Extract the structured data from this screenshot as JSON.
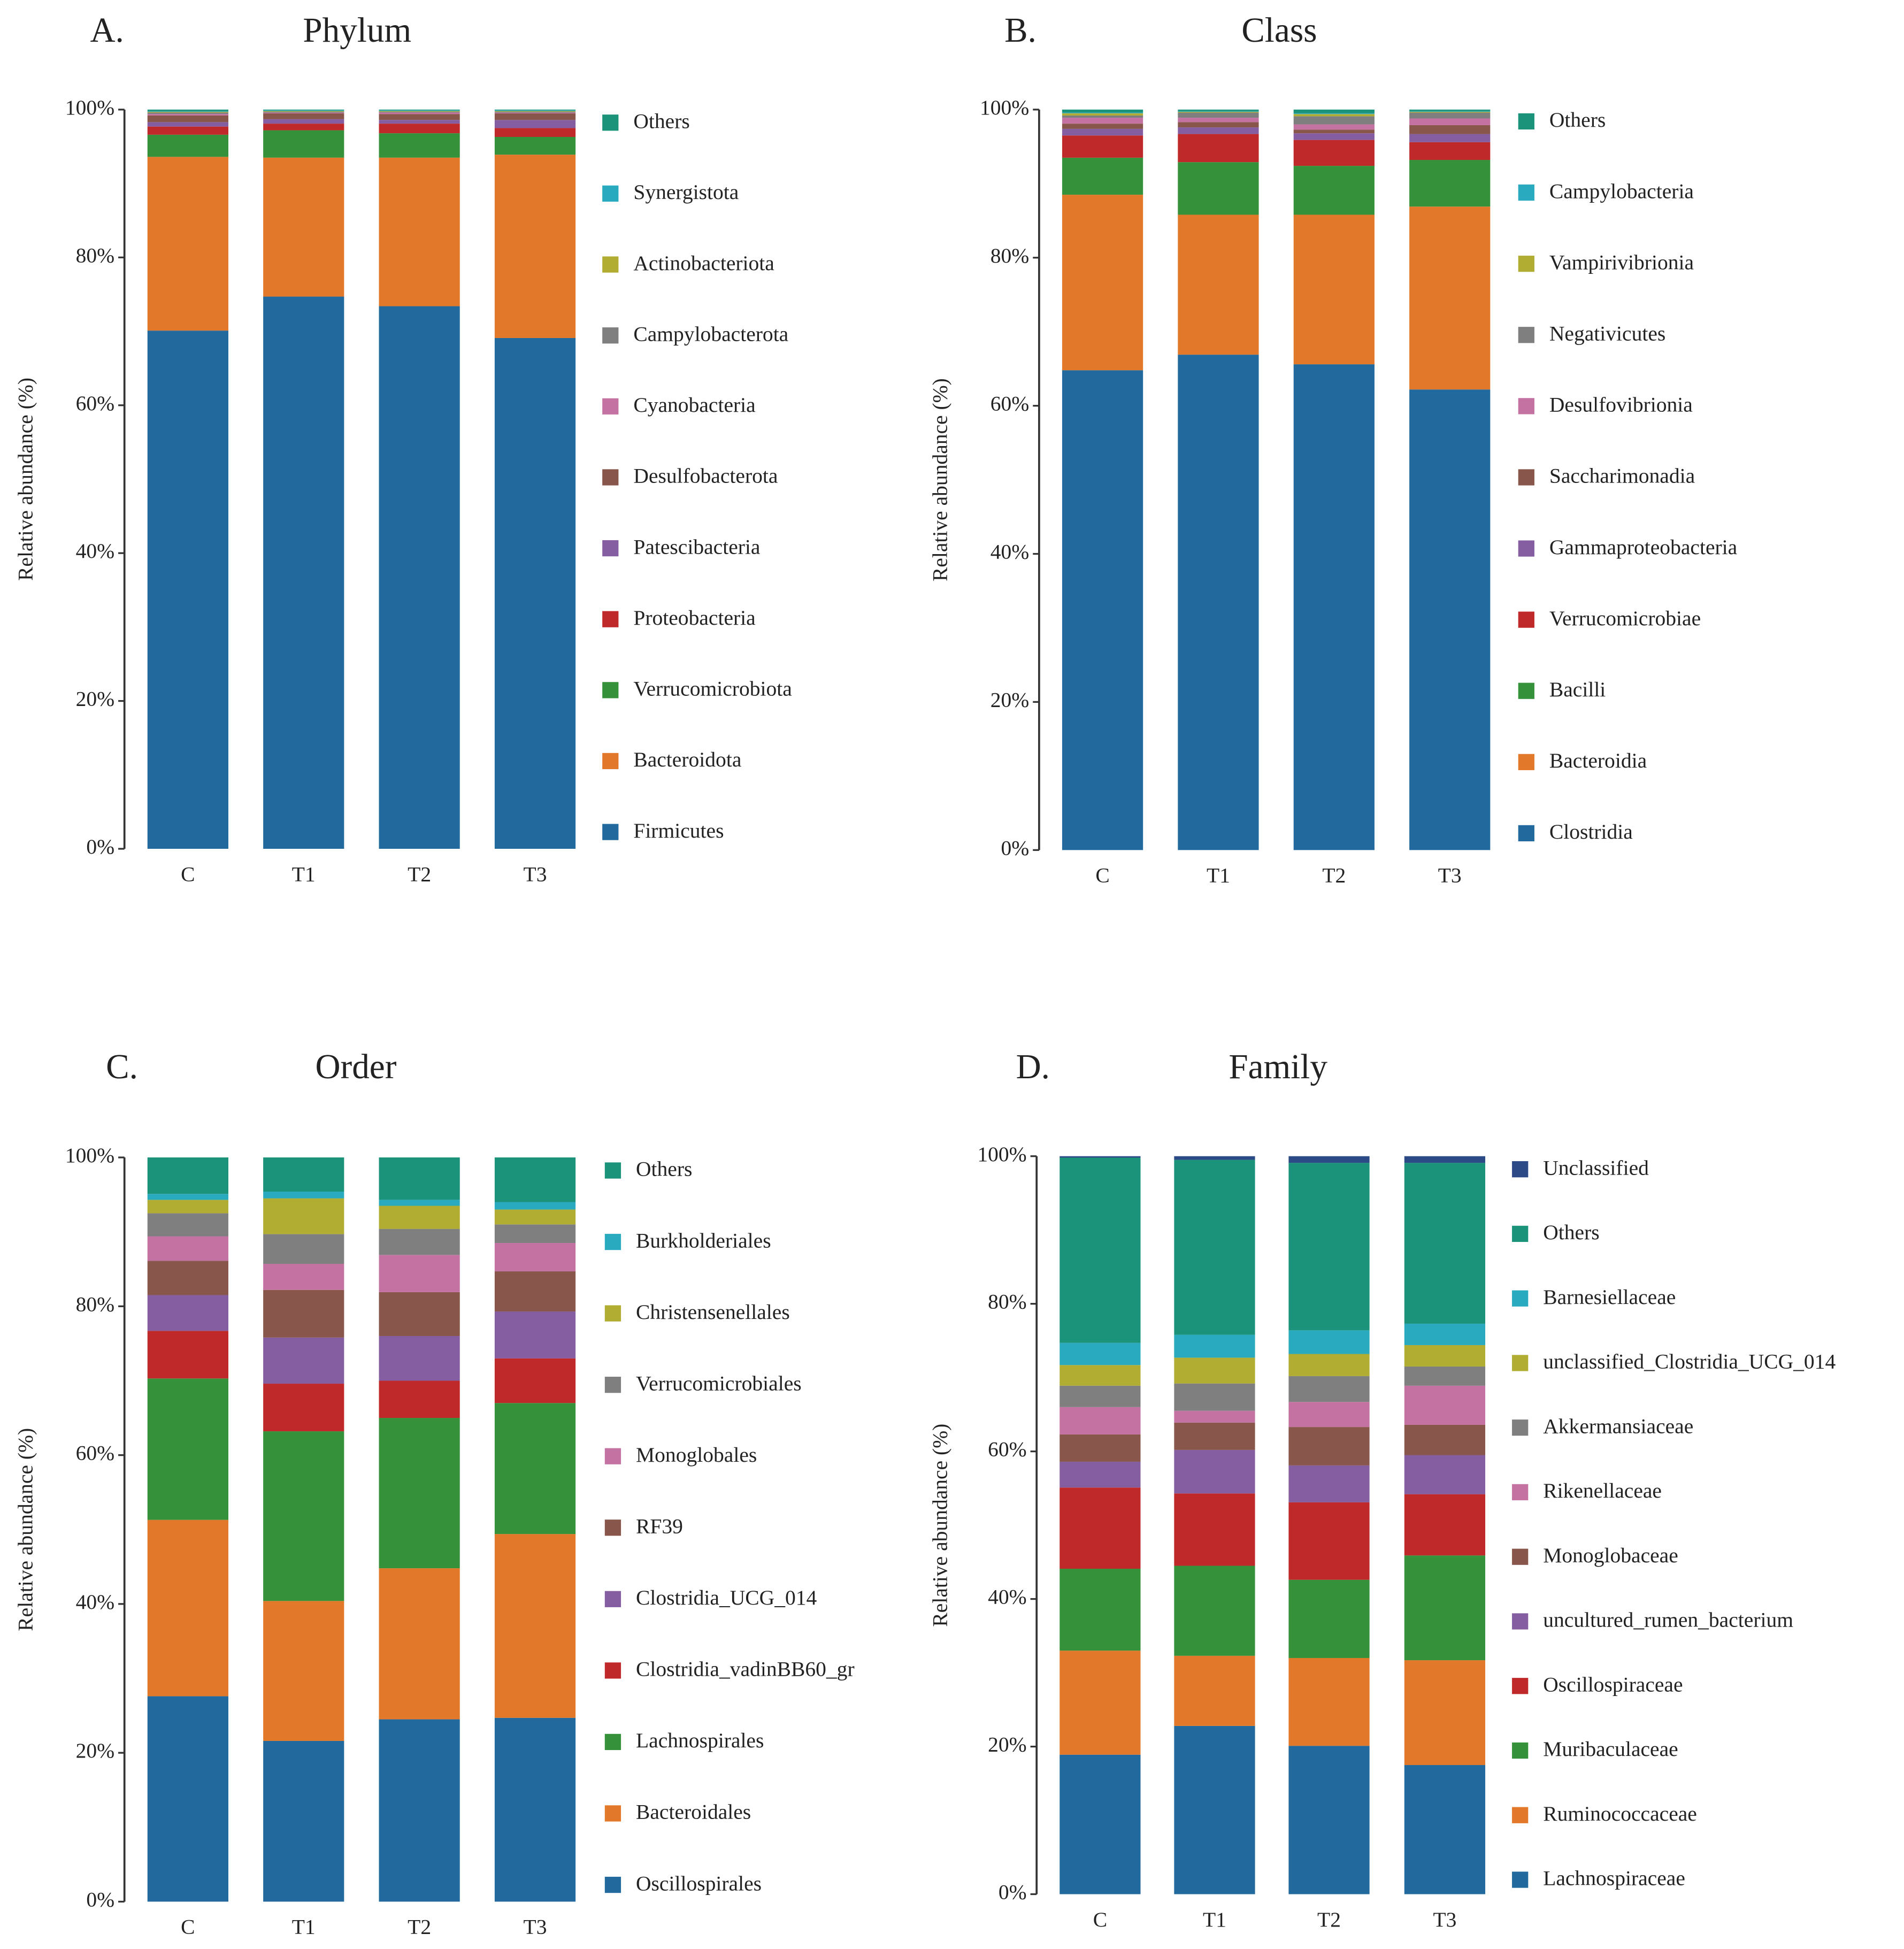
{
  "colors": {
    "blue": "#22699d",
    "orange": "#e27829",
    "green": "#35923a",
    "red": "#c0292a",
    "purple": "#845ea0",
    "brown": "#88564a",
    "pink": "#c472a2",
    "gray": "#7f7f7f",
    "olive": "#b0ad32",
    "cyan": "#29aabf",
    "teal": "#1b927a",
    "navy": "#2b4a86"
  },
  "chart_data": [
    {
      "type": "bar",
      "stacked": true,
      "panel_label": "A.",
      "title": "Phylum",
      "xlabel": "",
      "ylabel": "Relative abundance (%)",
      "ylim": [
        0,
        100
      ],
      "yticks": [
        "0%",
        "20%",
        "40%",
        "60%",
        "80%",
        "100%"
      ],
      "categories": [
        "C",
        "T1",
        "T2",
        "T3"
      ],
      "legend_position": "right",
      "series": [
        {
          "name": "Firmicutes",
          "color": "blue",
          "values": [
            70.1,
            74.7,
            73.4,
            69.1
          ]
        },
        {
          "name": "Bacteroidota",
          "color": "orange",
          "values": [
            23.5,
            18.8,
            20.1,
            24.8
          ]
        },
        {
          "name": "Verrucomicrobiota",
          "color": "green",
          "values": [
            3.0,
            3.7,
            3.3,
            2.4
          ]
        },
        {
          "name": "Proteobacteria",
          "color": "red",
          "values": [
            1.1,
            0.9,
            1.3,
            1.2
          ]
        },
        {
          "name": "Patescibacteria",
          "color": "purple",
          "values": [
            0.6,
            0.6,
            0.5,
            1.1
          ]
        },
        {
          "name": "Desulfobacterota",
          "color": "brown",
          "values": [
            0.9,
            0.8,
            0.8,
            0.9
          ]
        },
        {
          "name": "Cyanobacteria",
          "color": "pink",
          "values": [
            0.2,
            0.1,
            0.2,
            0.1
          ]
        },
        {
          "name": "Campylobacterota",
          "color": "gray",
          "values": [
            0.2,
            0.1,
            0.1,
            0.1
          ]
        },
        {
          "name": "Actinobacteriota",
          "color": "olive",
          "values": [
            0.1,
            0.1,
            0.1,
            0.1
          ]
        },
        {
          "name": "Synergistota",
          "color": "cyan",
          "values": [
            0.1,
            0.1,
            0.1,
            0.1
          ]
        },
        {
          "name": "Others",
          "color": "teal",
          "values": [
            0.2,
            0.1,
            0.1,
            0.1
          ]
        }
      ]
    },
    {
      "type": "bar",
      "stacked": true,
      "panel_label": "B.",
      "title": "Class",
      "xlabel": "",
      "ylabel": "Relative abundance (%)",
      "ylim": [
        0,
        100
      ],
      "yticks": [
        "0%",
        "20%",
        "40%",
        "60%",
        "80%",
        "100%"
      ],
      "categories": [
        "C",
        "T1",
        "T2",
        "T3"
      ],
      "legend_position": "right",
      "series": [
        {
          "name": "Clostridia",
          "color": "blue",
          "values": [
            64.8,
            66.9,
            65.6,
            62.2
          ]
        },
        {
          "name": "Bacteroidia",
          "color": "orange",
          "values": [
            23.7,
            18.9,
            20.2,
            24.7
          ]
        },
        {
          "name": "Bacilli",
          "color": "green",
          "values": [
            5.0,
            7.1,
            6.6,
            6.3
          ]
        },
        {
          "name": "Verrucomicrobiae",
          "color": "red",
          "values": [
            3.0,
            3.8,
            3.5,
            2.4
          ]
        },
        {
          "name": "Gammaproteobacteria",
          "color": "purple",
          "values": [
            0.9,
            0.9,
            0.9,
            1.1
          ]
        },
        {
          "name": "Saccharimonadia",
          "color": "brown",
          "values": [
            0.7,
            0.7,
            0.5,
            1.2
          ]
        },
        {
          "name": "Desulfovibrionia",
          "color": "pink",
          "values": [
            0.8,
            0.6,
            0.7,
            0.9
          ]
        },
        {
          "name": "Negativicutes",
          "color": "gray",
          "values": [
            0.3,
            0.7,
            1.1,
            0.8
          ]
        },
        {
          "name": "Vampirivibrionia",
          "color": "olive",
          "values": [
            0.3,
            0.1,
            0.3,
            0.1
          ]
        },
        {
          "name": "Campylobacteria",
          "color": "cyan",
          "values": [
            0.1,
            0.1,
            0.1,
            0.1
          ]
        },
        {
          "name": "Others",
          "color": "teal",
          "values": [
            0.4,
            0.2,
            0.5,
            0.2
          ]
        }
      ]
    },
    {
      "type": "bar",
      "stacked": true,
      "panel_label": "C.",
      "title": "Order",
      "xlabel": "",
      "ylabel": "Relative abundance (%)",
      "ylim": [
        0,
        100
      ],
      "yticks": [
        "0%",
        "20%",
        "40%",
        "60%",
        "80%",
        "100%"
      ],
      "categories": [
        "C",
        "T1",
        "T2",
        "T3"
      ],
      "legend_position": "right",
      "series": [
        {
          "name": "Oscillospirales",
          "color": "blue",
          "values": [
            27.6,
            21.6,
            24.5,
            24.7
          ]
        },
        {
          "name": "Bacteroidales",
          "color": "orange",
          "values": [
            23.7,
            18.8,
            20.3,
            24.7
          ]
        },
        {
          "name": "Lachnospirales",
          "color": "green",
          "values": [
            19.0,
            22.8,
            20.2,
            17.6
          ]
        },
        {
          "name": "Clostridia_vadinBB60_gr",
          "color": "red",
          "values": [
            6.4,
            6.4,
            5.0,
            6.0
          ]
        },
        {
          "name": "Clostridia_UCG_014",
          "color": "purple",
          "values": [
            4.8,
            6.2,
            6.0,
            6.3
          ]
        },
        {
          "name": "RF39",
          "color": "brown",
          "values": [
            4.6,
            6.4,
            5.9,
            5.4
          ]
        },
        {
          "name": "Monoglobales",
          "color": "pink",
          "values": [
            3.3,
            3.5,
            5.0,
            3.8
          ]
        },
        {
          "name": "Verrucomicrobiales",
          "color": "gray",
          "values": [
            3.1,
            4.0,
            3.5,
            2.5
          ]
        },
        {
          "name": "Christensenellales",
          "color": "olive",
          "values": [
            1.8,
            4.8,
            3.1,
            2.0
          ]
        },
        {
          "name": "Burkholderiales",
          "color": "cyan",
          "values": [
            0.8,
            0.9,
            0.8,
            1.0
          ]
        },
        {
          "name": "Others",
          "color": "teal",
          "values": [
            4.9,
            4.6,
            5.7,
            6.0
          ]
        }
      ]
    },
    {
      "type": "bar",
      "stacked": true,
      "panel_label": "D.",
      "title": "Family",
      "xlabel": "",
      "ylabel": "Relative abundance (%)",
      "ylim": [
        0,
        100
      ],
      "yticks": [
        "0%",
        "20%",
        "40%",
        "60%",
        "80%",
        "100%"
      ],
      "categories": [
        "C",
        "T1",
        "T2",
        "T3"
      ],
      "legend_position": "right",
      "series": [
        {
          "name": "Lachnospiraceae",
          "color": "blue",
          "values": [
            18.9,
            22.8,
            20.1,
            17.5
          ]
        },
        {
          "name": "Ruminococcaceae",
          "color": "orange",
          "values": [
            14.1,
            9.5,
            11.9,
            14.2
          ]
        },
        {
          "name": "Muribaculaceae",
          "color": "green",
          "values": [
            11.1,
            12.2,
            10.6,
            14.2
          ]
        },
        {
          "name": "Oscillospiraceae",
          "color": "red",
          "values": [
            11.0,
            9.8,
            10.5,
            8.3
          ]
        },
        {
          "name": "uncultured_rumen_bacterium",
          "color": "purple",
          "values": [
            3.5,
            5.9,
            5.0,
            5.3
          ]
        },
        {
          "name": "Monoglobaceae",
          "color": "brown",
          "values": [
            3.7,
            3.7,
            5.2,
            4.1
          ]
        },
        {
          "name": "Rikenellaceae",
          "color": "pink",
          "values": [
            3.7,
            1.6,
            3.4,
            5.3
          ]
        },
        {
          "name": "Akkermansiaceae",
          "color": "gray",
          "values": [
            2.9,
            3.7,
            3.5,
            2.6
          ]
        },
        {
          "name": "unclassified_Clostridia_UCG_014",
          "color": "olive",
          "values": [
            2.8,
            3.5,
            3.0,
            2.9
          ]
        },
        {
          "name": "Barnesiellaceae",
          "color": "cyan",
          "values": [
            3.0,
            3.1,
            3.2,
            2.9
          ]
        },
        {
          "name": "Others",
          "color": "teal",
          "values": [
            25.1,
            23.7,
            22.7,
            21.8
          ]
        },
        {
          "name": "Unclassified",
          "color": "navy",
          "values": [
            0.2,
            0.5,
            0.9,
            0.9
          ]
        }
      ]
    }
  ]
}
